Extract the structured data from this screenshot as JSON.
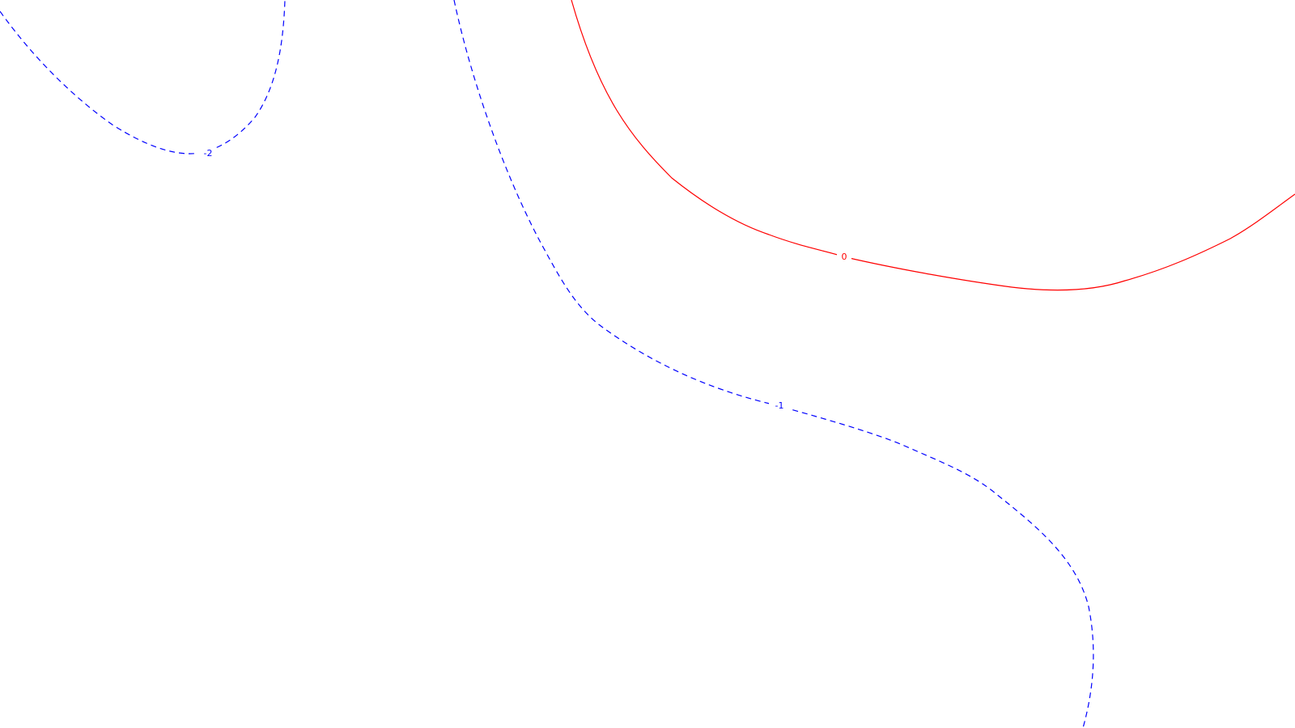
{
  "chart_data": {
    "type": "contour",
    "title": "",
    "xlabel": "",
    "ylabel": "",
    "grid": false,
    "colors": {
      "negative": "#0000ff",
      "zero": "#ff0000",
      "background": "#ffffff"
    },
    "levels": [
      {
        "id": "level-minus-2",
        "label": "-2",
        "value": -2,
        "style": "dashed",
        "color": "#0000ff"
      },
      {
        "id": "level-minus-1",
        "label": "-1",
        "value": -1,
        "style": "dashed",
        "color": "#0000ff"
      },
      {
        "id": "level-0",
        "label": "0",
        "value": 0,
        "style": "solid",
        "color": "#ff0000"
      }
    ]
  }
}
